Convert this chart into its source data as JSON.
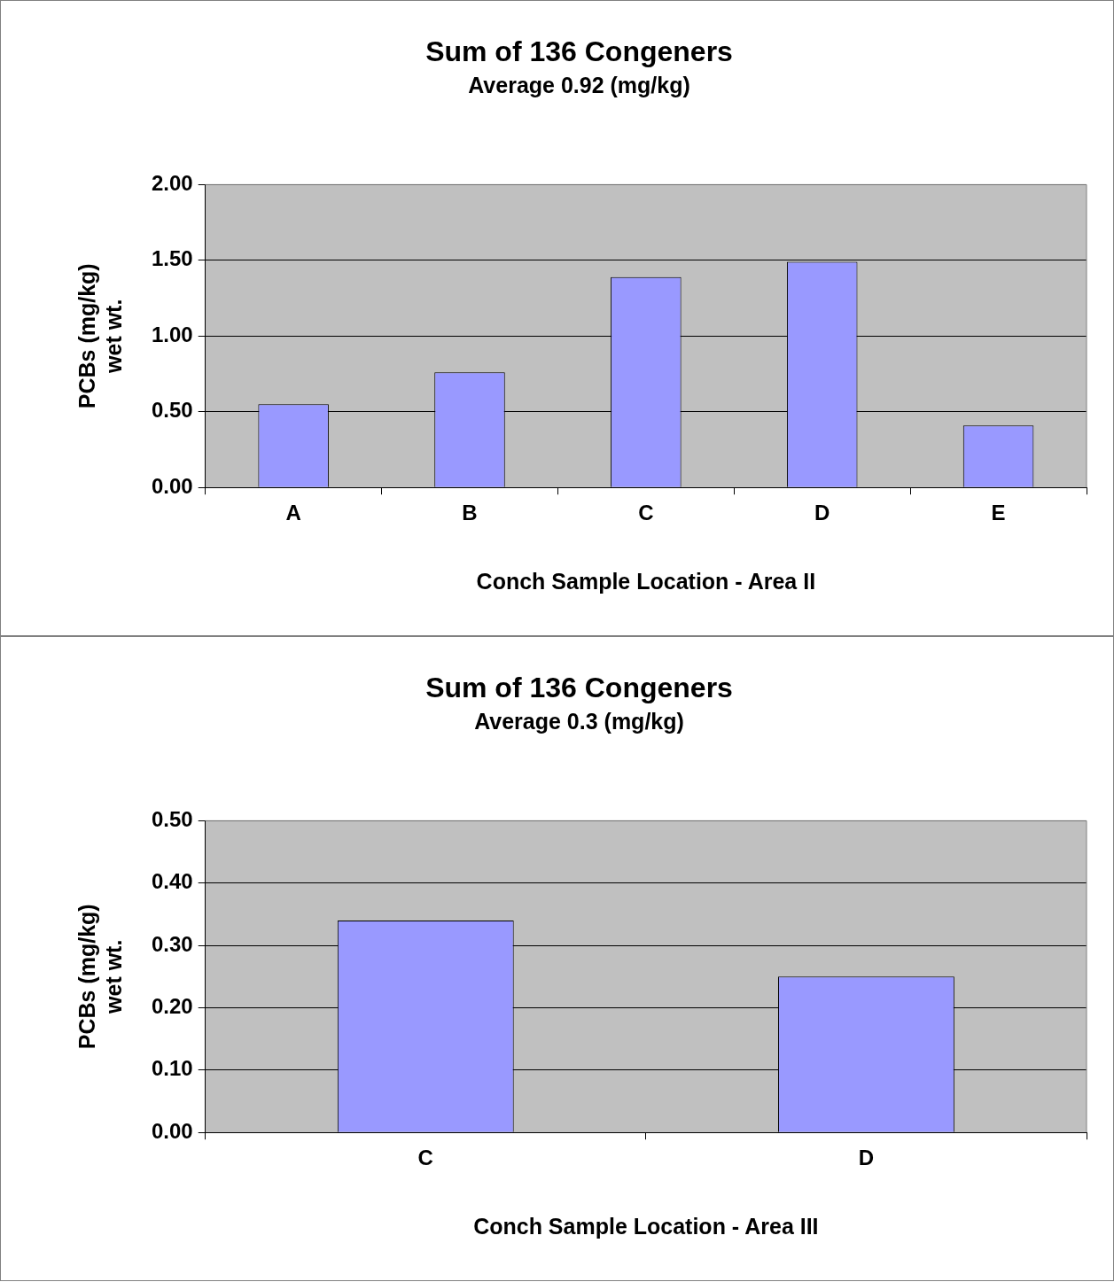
{
  "chart_data": [
    {
      "type": "bar",
      "title": "Sum of 136 Congeners",
      "subtitle": "Average 0.92 (mg/kg)",
      "xlabel": "Conch Sample Location - Area II",
      "ylabel": "PCBs (mg/kg)\nwet wt.",
      "categories": [
        "A",
        "B",
        "C",
        "D",
        "E"
      ],
      "values": [
        0.55,
        0.76,
        1.39,
        1.49,
        0.41
      ],
      "color": "#9999ff",
      "ylim": [
        0,
        2
      ],
      "yticks": [
        {
          "value": 0,
          "label": "0.00"
        },
        {
          "value": 0.5,
          "label": "0.50"
        },
        {
          "value": 1,
          "label": "1.00"
        },
        {
          "value": 1.5,
          "label": "1.50"
        },
        {
          "value": 2,
          "label": "2.00"
        }
      ],
      "grid": "y"
    },
    {
      "type": "bar",
      "title": "Sum of 136 Congeners",
      "subtitle": "Average 0.3 (mg/kg)",
      "xlabel": "Conch Sample Location - Area III",
      "ylabel": "PCBs (mg/kg)\nwet wt.",
      "categories": [
        "C",
        "D"
      ],
      "values": [
        0.34,
        0.25
      ],
      "color": "#9999ff",
      "ylim": [
        0,
        0.5
      ],
      "yticks": [
        {
          "value": 0,
          "label": "0.00"
        },
        {
          "value": 0.1,
          "label": "0.10"
        },
        {
          "value": 0.2,
          "label": "0.20"
        },
        {
          "value": 0.3,
          "label": "0.30"
        },
        {
          "value": 0.4,
          "label": "0.40"
        },
        {
          "value": 0.5,
          "label": "0.50"
        }
      ],
      "grid": "y"
    }
  ]
}
